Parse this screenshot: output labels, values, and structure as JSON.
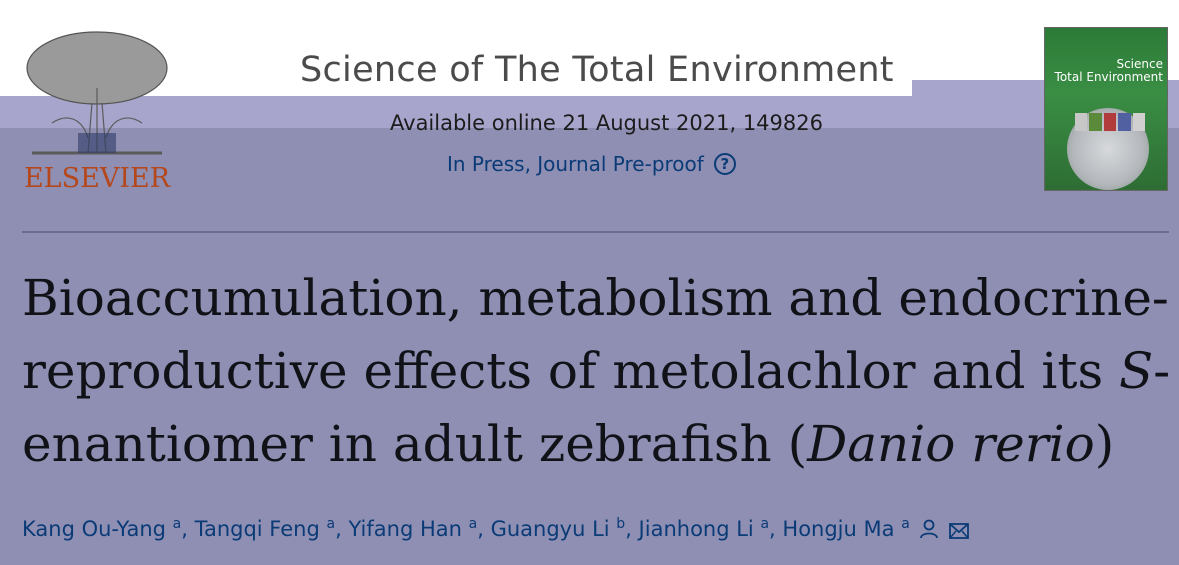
{
  "publisher": {
    "logo_text": "ELSEVIER"
  },
  "journal": {
    "title": "Science of The Total Environment",
    "availability": "Available online 21 August 2021, 149826",
    "status": "In Press, Journal Pre-proof",
    "help_icon": "question-circle-icon",
    "cover_title_line1": "Science",
    "cover_title_line2": "Total Environment"
  },
  "article": {
    "title_part1": "Bioaccumulation, metabolism and endocrine-reproductive effects of metolachlor and its ",
    "title_italic1": "S",
    "title_part2": "-enantiomer in adult zebrafish (",
    "title_italic2": "Danio rerio",
    "title_part3": ")"
  },
  "authors": [
    {
      "name": "Kang Ou-Yang",
      "aff": "a"
    },
    {
      "name": "Tangqi Feng",
      "aff": "a"
    },
    {
      "name": "Yifang Han",
      "aff": "a"
    },
    {
      "name": "Guangyu Li",
      "aff": "b"
    },
    {
      "name": "Jianhong Li",
      "aff": "a"
    },
    {
      "name": "Hongju Ma",
      "aff": "a"
    }
  ],
  "icons": {
    "person": "person-icon",
    "email": "envelope-icon"
  },
  "colors": {
    "link": "#0b3b77",
    "elsevier_orange": "#b4471c",
    "overlay": "#8e8fb3"
  }
}
